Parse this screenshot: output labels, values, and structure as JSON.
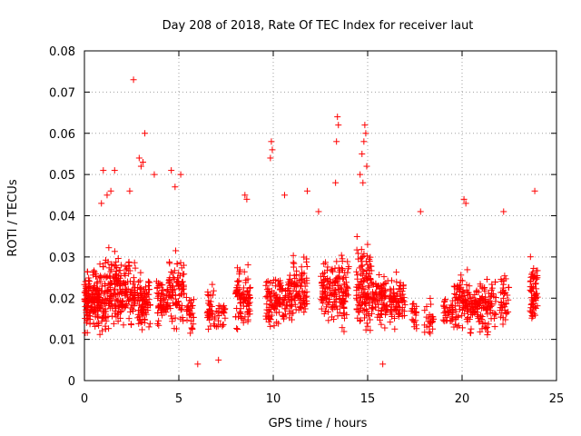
{
  "chart_data": {
    "type": "scatter",
    "title": "Day 208 of 2018, Rate Of TEC Index for receiver laut",
    "xlabel": "GPS time / hours",
    "ylabel": "ROTI / TECUs",
    "xlim": [
      0,
      25
    ],
    "ylim": [
      0,
      0.08
    ],
    "x_ticks": [
      "0",
      "5",
      "10",
      "15",
      "20",
      "25"
    ],
    "y_ticks": [
      "0",
      "0.01",
      "0.02",
      "0.03",
      "0.04",
      "0.05",
      "0.06",
      "0.07",
      "0.08"
    ],
    "grid": true,
    "marker": "+",
    "series_color": "#ff0000",
    "series": [
      {
        "marker_color": "#ff0000",
        "clusters": [
          {
            "x": [
              0.0,
              0.5
            ],
            "y": [
              0.007,
              0.032
            ],
            "n": 90
          },
          {
            "x": [
              0.5,
              1.2
            ],
            "y": [
              0.006,
              0.034
            ],
            "n": 110
          },
          {
            "x": [
              1.2,
              2.0
            ],
            "y": [
              0.007,
              0.036
            ],
            "n": 110
          },
          {
            "x": [
              2.0,
              2.7
            ],
            "y": [
              0.008,
              0.035
            ],
            "n": 80
          },
          {
            "x": [
              2.8,
              3.5
            ],
            "y": [
              0.007,
              0.03
            ],
            "n": 80
          },
          {
            "x": [
              3.8,
              4.4
            ],
            "y": [
              0.009,
              0.03
            ],
            "n": 60
          },
          {
            "x": [
              4.4,
              5.3
            ],
            "y": [
              0.008,
              0.036
            ],
            "n": 90
          },
          {
            "x": [
              5.4,
              5.8
            ],
            "y": [
              0.008,
              0.025
            ],
            "n": 30
          },
          {
            "x": [
              6.5,
              7.5
            ],
            "y": [
              0.007,
              0.026
            ],
            "n": 60
          },
          {
            "x": [
              8.0,
              8.8
            ],
            "y": [
              0.008,
              0.032
            ],
            "n": 90
          },
          {
            "x": [
              9.6,
              10.3
            ],
            "y": [
              0.008,
              0.03
            ],
            "n": 70
          },
          {
            "x": [
              10.3,
              11.0
            ],
            "y": [
              0.009,
              0.03
            ],
            "n": 70
          },
          {
            "x": [
              11.0,
              11.8
            ],
            "y": [
              0.009,
              0.035
            ],
            "n": 80
          },
          {
            "x": [
              12.5,
              13.2
            ],
            "y": [
              0.01,
              0.034
            ],
            "n": 70
          },
          {
            "x": [
              13.2,
              14.0
            ],
            "y": [
              0.008,
              0.035
            ],
            "n": 90
          },
          {
            "x": [
              14.4,
              15.2
            ],
            "y": [
              0.006,
              0.04
            ],
            "n": 120
          },
          {
            "x": [
              15.2,
              16.0
            ],
            "y": [
              0.008,
              0.033
            ],
            "n": 80
          },
          {
            "x": [
              16.0,
              17.0
            ],
            "y": [
              0.009,
              0.03
            ],
            "n": 80
          },
          {
            "x": [
              17.3,
              17.6
            ],
            "y": [
              0.008,
              0.025
            ],
            "n": 20
          },
          {
            "x": [
              18.0,
              18.5
            ],
            "y": [
              0.008,
              0.022
            ],
            "n": 25
          },
          {
            "x": [
              19.0,
              19.5
            ],
            "y": [
              0.009,
              0.025
            ],
            "n": 30
          },
          {
            "x": [
              19.5,
              20.3
            ],
            "y": [
              0.008,
              0.03
            ],
            "n": 80
          },
          {
            "x": [
              20.3,
              21.0
            ],
            "y": [
              0.008,
              0.028
            ],
            "n": 70
          },
          {
            "x": [
              21.0,
              21.8
            ],
            "y": [
              0.007,
              0.03
            ],
            "n": 70
          },
          {
            "x": [
              22.0,
              22.5
            ],
            "y": [
              0.01,
              0.03
            ],
            "n": 40
          },
          {
            "x": [
              23.6,
              24.0
            ],
            "y": [
              0.008,
              0.035
            ],
            "n": 70
          }
        ],
        "outliers": [
          [
            2.6,
            0.073
          ],
          [
            3.2,
            0.06
          ],
          [
            2.9,
            0.054
          ],
          [
            3.0,
            0.052
          ],
          [
            3.1,
            0.053
          ],
          [
            2.4,
            0.046
          ],
          [
            1.0,
            0.051
          ],
          [
            1.6,
            0.051
          ],
          [
            3.7,
            0.05
          ],
          [
            5.1,
            0.05
          ],
          [
            4.6,
            0.051
          ],
          [
            4.8,
            0.047
          ],
          [
            1.2,
            0.045
          ],
          [
            0.9,
            0.043
          ],
          [
            1.4,
            0.046
          ],
          [
            9.9,
            0.058
          ],
          [
            9.95,
            0.056
          ],
          [
            9.85,
            0.054
          ],
          [
            13.4,
            0.064
          ],
          [
            13.45,
            0.062
          ],
          [
            13.35,
            0.058
          ],
          [
            13.3,
            0.048
          ],
          [
            14.85,
            0.062
          ],
          [
            14.9,
            0.06
          ],
          [
            14.8,
            0.058
          ],
          [
            14.7,
            0.055
          ],
          [
            14.95,
            0.052
          ],
          [
            14.6,
            0.05
          ],
          [
            14.75,
            0.048
          ],
          [
            8.5,
            0.045
          ],
          [
            8.6,
            0.044
          ],
          [
            10.6,
            0.045
          ],
          [
            11.8,
            0.046
          ],
          [
            12.4,
            0.041
          ],
          [
            17.8,
            0.041
          ],
          [
            22.2,
            0.041
          ],
          [
            23.85,
            0.046
          ],
          [
            20.1,
            0.044
          ],
          [
            20.2,
            0.043
          ],
          [
            6.0,
            0.004
          ],
          [
            7.1,
            0.005
          ],
          [
            15.8,
            0.004
          ]
        ]
      }
    ]
  }
}
